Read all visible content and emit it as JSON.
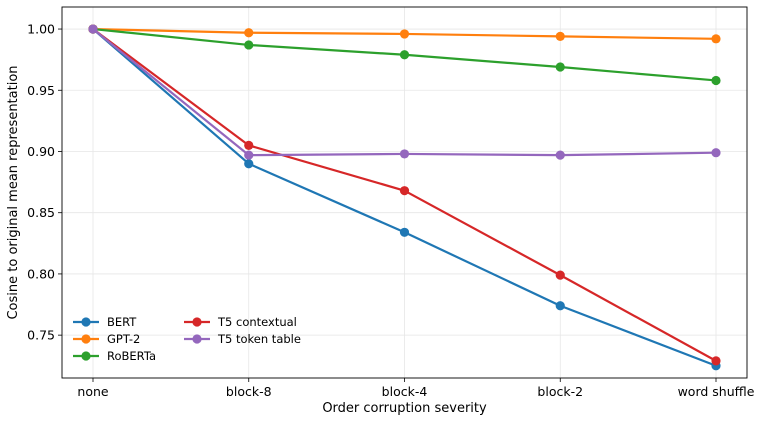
{
  "chart_data": {
    "type": "line",
    "title": "",
    "xlabel": "Order corruption severity",
    "ylabel": "Cosine to original mean representation",
    "categories": [
      "none",
      "block-8",
      "block-4",
      "block-2",
      "word shuffle"
    ],
    "ylim": [
      0.715,
      1.018
    ],
    "yticks": [
      0.75,
      0.8,
      0.85,
      0.9,
      0.95,
      1.0
    ],
    "ytick_labels": [
      "0.75",
      "0.80",
      "0.85",
      "0.90",
      "0.95",
      "1.00"
    ],
    "grid": true,
    "legend_position": "bottom-left",
    "series": [
      {
        "name": "BERT",
        "color": "#1f77b4",
        "values": [
          1.0,
          0.89,
          0.834,
          0.774,
          0.725
        ]
      },
      {
        "name": "GPT-2",
        "color": "#ff7f0e",
        "values": [
          1.0,
          0.997,
          0.996,
          0.994,
          0.992
        ]
      },
      {
        "name": "RoBERTa",
        "color": "#2ca02c",
        "values": [
          1.0,
          0.987,
          0.979,
          0.969,
          0.958
        ]
      },
      {
        "name": "T5 contextual",
        "color": "#d62728",
        "values": [
          1.0,
          0.905,
          0.868,
          0.799,
          0.729
        ]
      },
      {
        "name": "T5 token table",
        "color": "#9467bd",
        "values": [
          1.0,
          0.897,
          0.898,
          0.897,
          0.899
        ]
      }
    ]
  }
}
